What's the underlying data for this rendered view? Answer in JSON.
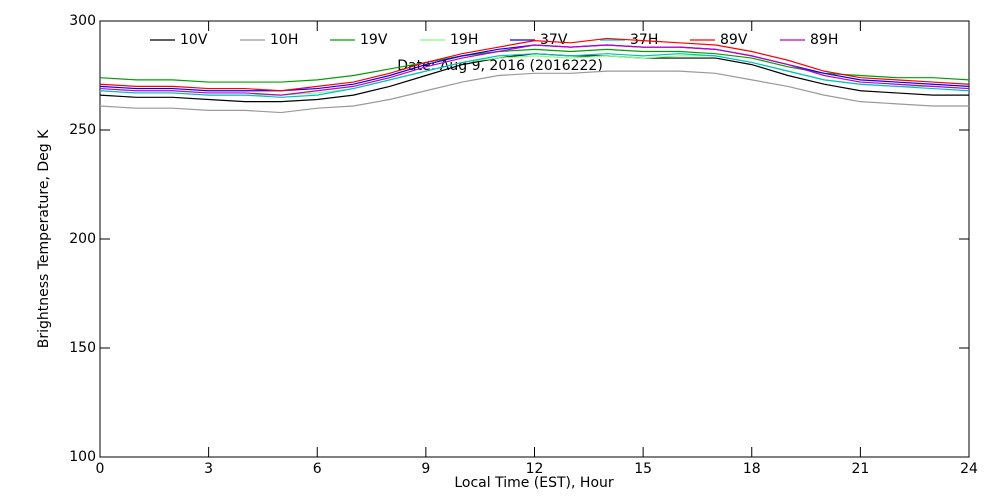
{
  "chart_data": {
    "type": "line",
    "annotation": "Date: Aug  9, 2016 (2016222)",
    "xlabel": "Local Time (EST), Hour",
    "ylabel": "Brightness Temperature, Deg K",
    "x": [
      0,
      1,
      2,
      3,
      4,
      5,
      6,
      7,
      8,
      9,
      10,
      11,
      12,
      13,
      14,
      15,
      16,
      17,
      18,
      19,
      20,
      21,
      22,
      23,
      24
    ],
    "xlim": [
      0,
      24
    ],
    "xticks": [
      0,
      3,
      6,
      9,
      12,
      15,
      18,
      21,
      24
    ],
    "ylim": [
      100,
      300
    ],
    "yticks": [
      100,
      150,
      200,
      250,
      300
    ],
    "series": [
      {
        "name": "10V",
        "color": "#000000",
        "values": [
          266,
          265,
          265,
          264,
          263,
          263,
          264,
          266,
          270,
          275,
          280,
          283,
          285,
          284,
          284,
          283,
          283,
          283,
          280,
          275,
          271,
          268,
          267,
          266,
          266
        ]
      },
      {
        "name": "10H",
        "color": "#999999",
        "values": [
          261,
          260,
          260,
          259,
          259,
          258,
          260,
          261,
          264,
          268,
          272,
          275,
          276,
          276,
          277,
          277,
          277,
          276,
          273,
          270,
          266,
          263,
          262,
          261,
          261
        ]
      },
      {
        "name": "19V",
        "color": "#00a000",
        "values": [
          274,
          273,
          273,
          272,
          272,
          272,
          273,
          275,
          278,
          281,
          284,
          286,
          287,
          286,
          287,
          286,
          286,
          285,
          283,
          279,
          276,
          275,
          274,
          274,
          273
        ]
      },
      {
        "name": "19H",
        "color": "#80ff80",
        "values": [
          268,
          267,
          267,
          266,
          266,
          266,
          267,
          269,
          273,
          277,
          281,
          283,
          284,
          283,
          284,
          283,
          284,
          284,
          281,
          277,
          273,
          271,
          270,
          270,
          269
        ]
      },
      {
        "name": "37V",
        "color": "#0000ff",
        "values": [
          270,
          269,
          269,
          268,
          268,
          268,
          269,
          271,
          275,
          280,
          284,
          287,
          289,
          288,
          289,
          288,
          288,
          287,
          284,
          280,
          276,
          273,
          272,
          271,
          270
        ]
      },
      {
        "name": "37H",
        "color": "#00c0c0",
        "values": [
          268,
          267,
          267,
          266,
          266,
          265,
          266,
          269,
          273,
          277,
          281,
          284,
          285,
          284,
          285,
          284,
          285,
          284,
          281,
          277,
          273,
          271,
          270,
          269,
          268
        ]
      },
      {
        "name": "89V",
        "color": "#ff0000",
        "values": [
          271,
          270,
          270,
          269,
          269,
          268,
          270,
          272,
          276,
          281,
          285,
          288,
          291,
          290,
          292,
          291,
          290,
          289,
          286,
          282,
          277,
          274,
          273,
          272,
          271
        ]
      },
      {
        "name": "89H",
        "color": "#c000c0",
        "values": [
          269,
          268,
          268,
          267,
          267,
          266,
          268,
          270,
          274,
          279,
          283,
          286,
          289,
          288,
          289,
          288,
          288,
          287,
          284,
          280,
          275,
          272,
          271,
          270,
          269
        ]
      }
    ]
  }
}
